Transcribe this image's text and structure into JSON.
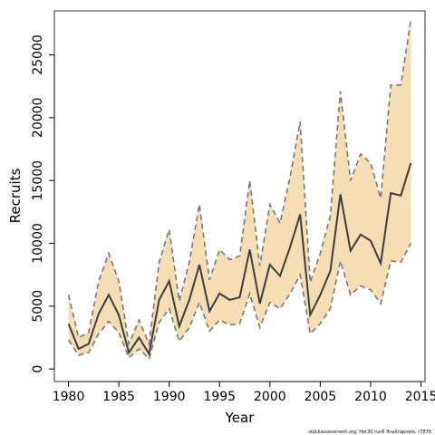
{
  "chart_data": {
    "type": "line",
    "title": "",
    "xlabel": "Year",
    "ylabel": "Recruits",
    "footnote": "stockassessment.org, Her30 run6 finaltrapnets, r7876",
    "xlim": [
      1978.6,
      2015.4
    ],
    "ylim": [
      -1000,
      28500
    ],
    "x_ticks": [
      1980,
      1985,
      1990,
      1995,
      2000,
      2005,
      2010,
      2015
    ],
    "y_ticks": [
      0,
      5000,
      10000,
      15000,
      20000,
      25000
    ],
    "grid": false,
    "legend": "none",
    "colors": {
      "band": "#f5deb3",
      "estimate": "#3d3d3d",
      "bounds": "#777777",
      "frame": "#333333"
    },
    "x": [
      1980,
      1981,
      1982,
      1983,
      1984,
      1985,
      1986,
      1987,
      1988,
      1989,
      1990,
      1991,
      1992,
      1993,
      1994,
      1995,
      1996,
      1997,
      1998,
      1999,
      2000,
      2001,
      2002,
      2003,
      2004,
      2005,
      2006,
      2007,
      2008,
      2009,
      2010,
      2011,
      2012,
      2013,
      2014
    ],
    "series": [
      {
        "role": "estimate",
        "style": "solid",
        "values": [
          3600,
          1600,
          2000,
          4400,
          5900,
          4300,
          1300,
          2500,
          1200,
          5500,
          7000,
          3400,
          5500,
          8300,
          4600,
          6000,
          5500,
          5700,
          9500,
          5200,
          8300,
          7400,
          9700,
          12300,
          4300,
          5900,
          7800,
          13900,
          9400,
          10700,
          10200,
          8400,
          14000,
          13800,
          16400
        ]
      },
      {
        "role": "lower",
        "style": "dashed",
        "values": [
          2300,
          1100,
          1300,
          2800,
          3800,
          2900,
          900,
          1600,
          800,
          3700,
          4800,
          2200,
          3300,
          5300,
          3000,
          3900,
          3500,
          3600,
          6000,
          3300,
          5300,
          4800,
          6000,
          7500,
          2800,
          3600,
          4800,
          8600,
          5900,
          6600,
          6300,
          5200,
          8600,
          8500,
          10000
        ]
      },
      {
        "role": "upper",
        "style": "dashed",
        "values": [
          5900,
          2500,
          2900,
          7000,
          9200,
          7000,
          2000,
          3900,
          2000,
          8500,
          11100,
          5400,
          8500,
          13100,
          7100,
          9500,
          8700,
          9000,
          15000,
          8200,
          13100,
          11600,
          15300,
          19700,
          6900,
          9200,
          12200,
          22100,
          15000,
          17100,
          16400,
          13600,
          22600,
          22600,
          27800
        ]
      }
    ]
  }
}
